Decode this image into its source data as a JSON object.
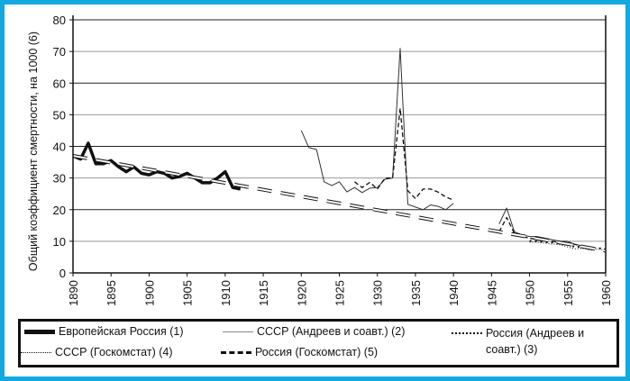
{
  "chart_data": {
    "type": "line",
    "ylabel": "Общий коэффициент смертности, на 1000 (6)",
    "xlabel": "",
    "xlim": [
      1890,
      1960
    ],
    "ylim": [
      0,
      80
    ],
    "xticks": [
      "1890",
      "1895",
      "1900",
      "1905",
      "1910",
      "1915",
      "1920",
      "1925",
      "1930",
      "1935",
      "1940",
      "1945",
      "1950",
      "1955",
      "1960"
    ],
    "yticks": [
      "0",
      "10",
      "20",
      "30",
      "40",
      "50",
      "60",
      "70",
      "80"
    ],
    "grid": "horizontal",
    "legend_position": "bottom",
    "series": [
      {
        "name": "Европейская Россия (1)",
        "style": "thick-solid",
        "x": [
          1890,
          1891,
          1892,
          1893,
          1894,
          1895,
          1896,
          1897,
          1898,
          1899,
          1900,
          1901,
          1902,
          1903,
          1904,
          1905,
          1906,
          1907,
          1908,
          1909,
          1910,
          1911,
          1912
        ],
        "values": [
          37,
          36,
          41,
          34.5,
          34.5,
          35.5,
          33.5,
          32,
          33.5,
          31.5,
          31,
          32,
          31.5,
          30,
          30.5,
          31.5,
          30,
          28.5,
          28.5,
          30,
          32,
          27,
          26.5
        ]
      },
      {
        "name": "СССР (Андреев и соавт.) (2)",
        "style": "thin-solid",
        "x": [
          1920,
          1921,
          1922,
          1923,
          1924,
          1925,
          1926,
          1927,
          1928,
          1929,
          1930,
          1931,
          1932,
          1933,
          1934,
          1935,
          1936,
          1937,
          1938,
          1939,
          1940,
          null,
          1946,
          1947,
          1948,
          1949,
          1950,
          1951,
          1952,
          1953,
          1954,
          1955,
          1956,
          1957,
          1958
        ],
        "values": [
          45,
          39.6,
          39,
          28.8,
          27.6,
          28.8,
          25.6,
          27,
          25.4,
          26.8,
          27,
          29.6,
          30,
          71,
          21.7,
          20.8,
          20,
          21.5,
          21,
          20,
          22,
          null,
          15.5,
          20.5,
          13,
          12,
          11.5,
          11.5,
          11,
          10.5,
          10,
          10,
          9,
          8.5,
          8
        ]
      },
      {
        "name": "Россия (Андреев и соавт.) (3)",
        "style": "dashed",
        "x": [
          1927,
          1928,
          1929,
          1930,
          1931,
          1932,
          1933,
          1934,
          1935,
          1936,
          1937,
          1938,
          1939,
          1940,
          null,
          1946,
          1947,
          1948,
          1949,
          1950,
          1951,
          1952,
          1953,
          1954,
          1955,
          1956,
          1957,
          1958
        ],
        "values": [
          28.8,
          27,
          28.6,
          26.5,
          30,
          30,
          52,
          26,
          23.5,
          26.5,
          26.5,
          25.5,
          24,
          23,
          null,
          13,
          17.5,
          12.5,
          11.5,
          11,
          10.5,
          10.5,
          10,
          9.5,
          9.5,
          9,
          8.5,
          8
        ]
      },
      {
        "name": "СССР (Госкомстат) (4)",
        "style": "dotted",
        "x": [
          1950,
          1951,
          1952,
          1953,
          1954,
          1955,
          1956,
          1957,
          1958,
          1959,
          1960
        ],
        "values": [
          9.7,
          9.7,
          9.4,
          9.1,
          8.9,
          8.2,
          7.6,
          7.8,
          7.2,
          7.6,
          7.1
        ]
      },
      {
        "name": "Россия (Госкомстат) (5)",
        "style": "star-dashed",
        "x": [
          1950,
          1951,
          1952,
          1953,
          1954,
          1955,
          1956,
          1957,
          1958,
          1959,
          1960
        ],
        "values": [
          10.1,
          10,
          9.8,
          9.6,
          9.3,
          9,
          8.2,
          8.3,
          7.8,
          7.9,
          7.4
        ]
      },
      {
        "style": "hollow-dashed-trend",
        "x": [
          1890,
          1960
        ],
        "values": [
          37,
          7
        ]
      }
    ]
  },
  "colors": {
    "frame": "#13a8e0",
    "line": "#111111",
    "grid": "#999999"
  }
}
